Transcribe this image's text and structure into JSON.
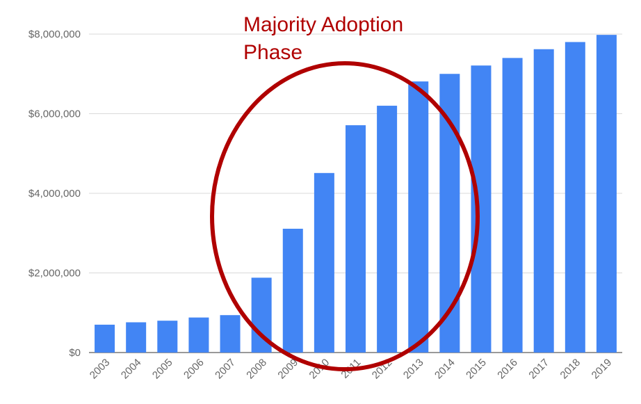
{
  "chart_data": {
    "type": "bar",
    "title": "",
    "xlabel": "",
    "ylabel": "",
    "categories": [
      "2003",
      "2004",
      "2005",
      "2006",
      "2007",
      "2008",
      "2009",
      "2010",
      "2011",
      "2012",
      "2013",
      "2014",
      "2015",
      "2016",
      "2017",
      "2018",
      "2019"
    ],
    "series": [
      {
        "values": [
          700000,
          760000,
          800000,
          880000,
          940000,
          1880000,
          3110000,
          4510000,
          5710000,
          6200000,
          6810000,
          7000000,
          7210000,
          7400000,
          7620000,
          7800000,
          7980000
        ],
        "color": "#4285f4"
      }
    ],
    "ylim": [
      0,
      8000000
    ],
    "y_ticks": [
      0,
      2000000,
      4000000,
      6000000,
      8000000
    ],
    "y_tick_labels": [
      "$0",
      "$2,000,000",
      "$4,000,000",
      "$6,000,000",
      "$8,000,000"
    ],
    "grid": true,
    "legend": "none",
    "x_tick_rotation": "diagonal",
    "annotations": [
      {
        "type": "ellipse",
        "color": "#b00000",
        "label": "Majority Adoption Phase",
        "label_lines": [
          "Majority Adoption",
          "Phase"
        ],
        "spans_categories": [
          "2008",
          "2014"
        ]
      }
    ]
  }
}
